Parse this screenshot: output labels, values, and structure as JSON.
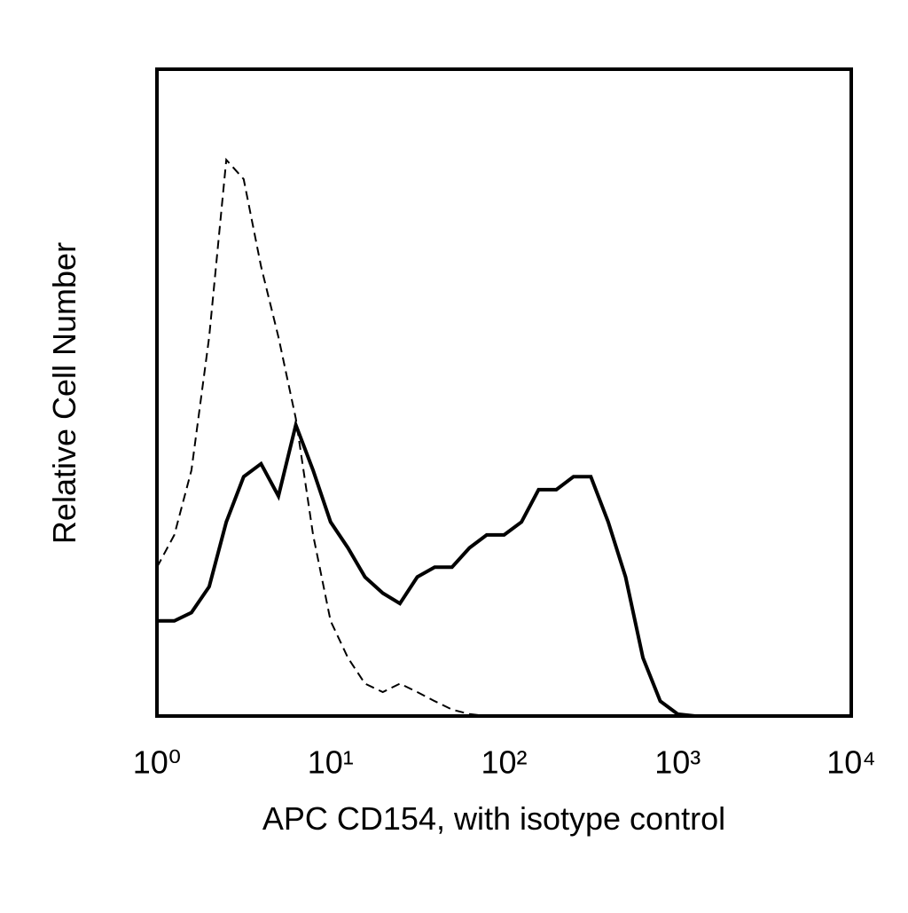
{
  "chart_data": {
    "type": "line",
    "x_label": "APC CD154, with isotype control",
    "y_label": "Relative Cell Number",
    "xscale": "log",
    "xlim": [
      1,
      10000
    ],
    "xticks": [
      {
        "value": 1,
        "label": "10⁰"
      },
      {
        "value": 10,
        "label": "10¹"
      },
      {
        "value": 100,
        "label": "10²"
      },
      {
        "value": 1000,
        "label": "10³"
      },
      {
        "value": 10000,
        "label": "10⁴"
      }
    ],
    "ylim": [
      0,
      100
    ],
    "grid": false,
    "x": [
      1,
      1.26,
      1.58,
      2,
      2.51,
      3.16,
      3.98,
      5.01,
      6.31,
      7.94,
      10,
      12.6,
      15.8,
      20,
      25.1,
      31.6,
      39.8,
      50.1,
      63.1,
      79.4,
      100,
      126,
      158,
      200,
      251,
      316,
      398,
      501,
      631,
      794,
      1000,
      1259,
      10000
    ],
    "series": [
      {
        "color": "#000000",
        "style": "solid",
        "width": 4,
        "values": [
          14.7,
          14.7,
          16,
          20,
          30,
          37,
          39,
          34,
          45,
          38,
          30,
          26,
          21.5,
          19,
          17.4,
          21.5,
          23,
          23,
          26,
          28,
          28,
          30,
          35,
          35,
          37,
          37,
          30,
          21.5,
          9,
          2.3,
          0.3,
          0,
          0
        ]
      },
      {
        "color": "#000000",
        "style": "dashed",
        "width": 2,
        "values": [
          23,
          28,
          38,
          58.6,
          86,
          83,
          69.5,
          58.6,
          46,
          28,
          14.7,
          9,
          5,
          3.7,
          5,
          3.7,
          2.3,
          1,
          0.3,
          0,
          0,
          0,
          0,
          0,
          0,
          0,
          0,
          0,
          0,
          0,
          0,
          0,
          0
        ]
      }
    ]
  }
}
